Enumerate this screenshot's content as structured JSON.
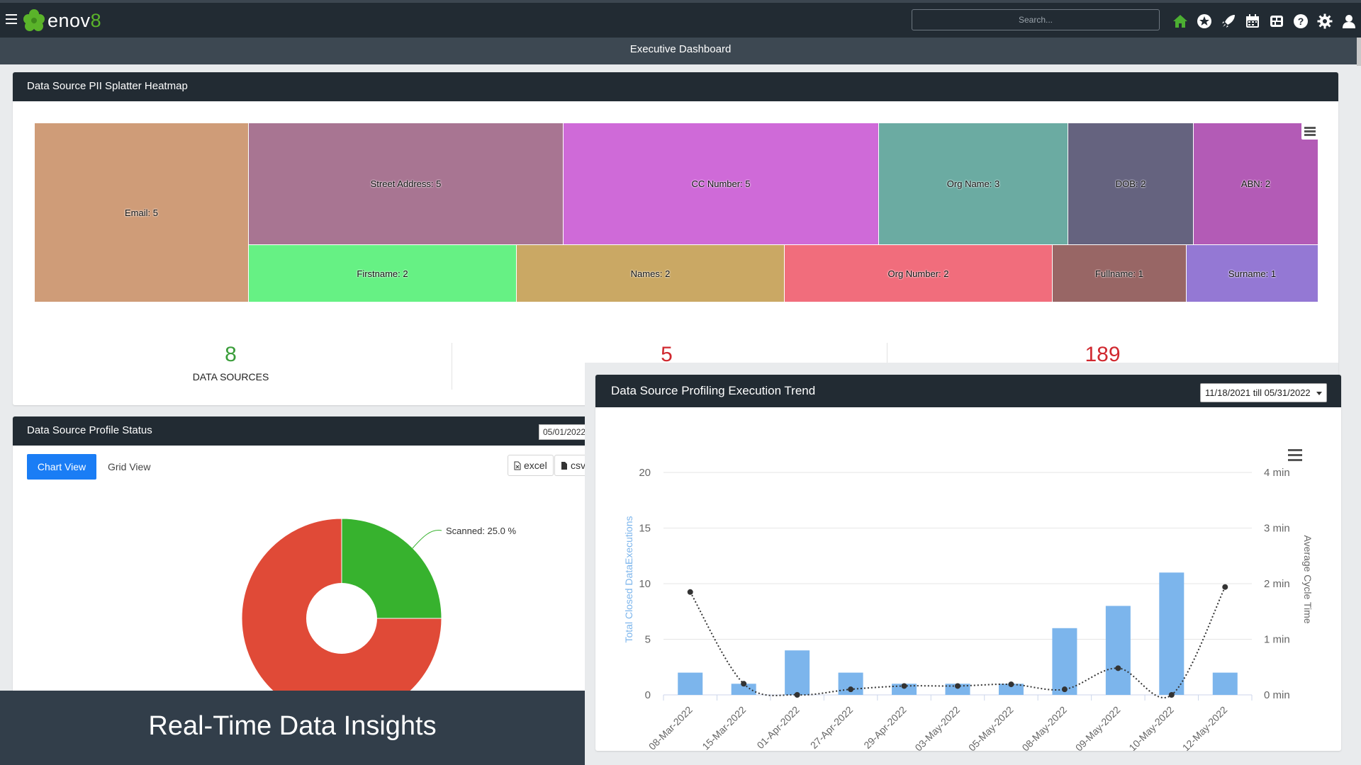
{
  "app": {
    "brand_prefix": "enov",
    "brand_suffix": "8",
    "search_placeholder": "Search...",
    "page_title": "Executive Dashboard",
    "nav_icons": [
      "home-icon",
      "star-icon",
      "rocket-icon",
      "calendar-icon",
      "dashboard-icon",
      "help-icon",
      "settings-icon",
      "user-icon"
    ]
  },
  "heatmap": {
    "title": "Data Source PII Splatter Heatmap",
    "cells": [
      {
        "label": "Email: 5",
        "color": "#cf9c78"
      },
      {
        "label": "Street Address: 5",
        "color": "#a87592"
      },
      {
        "label": "CC Number: 5",
        "color": "#cf6ad8"
      },
      {
        "label": "Org Name: 3",
        "color": "#6baba2"
      },
      {
        "label": "DOB: 2",
        "color": "#65637f"
      },
      {
        "label": "ABN: 2",
        "color": "#b35bb6"
      },
      {
        "label": "Firstname: 2",
        "color": "#66f184"
      },
      {
        "label": "Names: 2",
        "color": "#caa864"
      },
      {
        "label": "Org Number: 2",
        "color": "#f16d7c"
      },
      {
        "label": "Fullname: 1",
        "color": "#986665"
      },
      {
        "label": "Surname: 1",
        "color": "#9478d4"
      }
    ]
  },
  "stats": [
    {
      "value": "8",
      "label": "DATA SOURCES",
      "color": "#3a9d3a"
    },
    {
      "value": "5",
      "label": "",
      "color": "#d0282f"
    },
    {
      "value": "189",
      "label": "",
      "color": "#d0282f"
    }
  ],
  "profile_status": {
    "title": "Data Source Profile Status",
    "date": "05/01/2022",
    "chart_view_label": "Chart View",
    "grid_view_label": "Grid View",
    "excel_label": "excel",
    "csv_label": "csv",
    "donut": {
      "scanned_label": "Scanned: 25.0 %",
      "scanned_percent": 25,
      "scanned_color": "#37b22e",
      "other_color": "#e04a37"
    }
  },
  "caption": "Real-Time Data Insights",
  "trend": {
    "title": "Data Source Profiling Execution Trend",
    "range_label": "11/18/2021 till 05/31/2022"
  },
  "chart_data": {
    "type": "bar",
    "categories": [
      "08-Mar-2022",
      "15-Mar-2022",
      "01-Apr-2022",
      "27-Apr-2022",
      "29-Apr-2022",
      "03-May-2022",
      "05-May-2022",
      "08-May-2022",
      "09-May-2022",
      "10-May-2022",
      "12-May-2022"
    ],
    "series": [
      {
        "name": "Total Closed DataExecutions",
        "type": "bar",
        "axis": "left",
        "color": "#7cb5ec",
        "values": [
          2,
          1,
          4,
          2,
          1,
          1,
          1,
          6,
          8,
          11,
          2
        ]
      },
      {
        "name": "Average Cycle Time",
        "type": "line",
        "axis": "right",
        "color": "#333333",
        "values_min": [
          1.85,
          0.2,
          0.0,
          0.1,
          0.16,
          0.16,
          0.19,
          0.1,
          0.48,
          0.0,
          1.94
        ]
      }
    ],
    "ylabel_left": "Total Closed DataExecutions",
    "ylabel_right": "Average Cycle Time",
    "left_ticks": [
      "0",
      "5",
      "10",
      "15",
      "20"
    ],
    "right_ticks": [
      "0 min",
      "1 min",
      "2 min",
      "3 min",
      "4 min"
    ],
    "ylim_left": [
      0,
      20
    ],
    "ylim_right": [
      0,
      4
    ],
    "grid": true
  }
}
